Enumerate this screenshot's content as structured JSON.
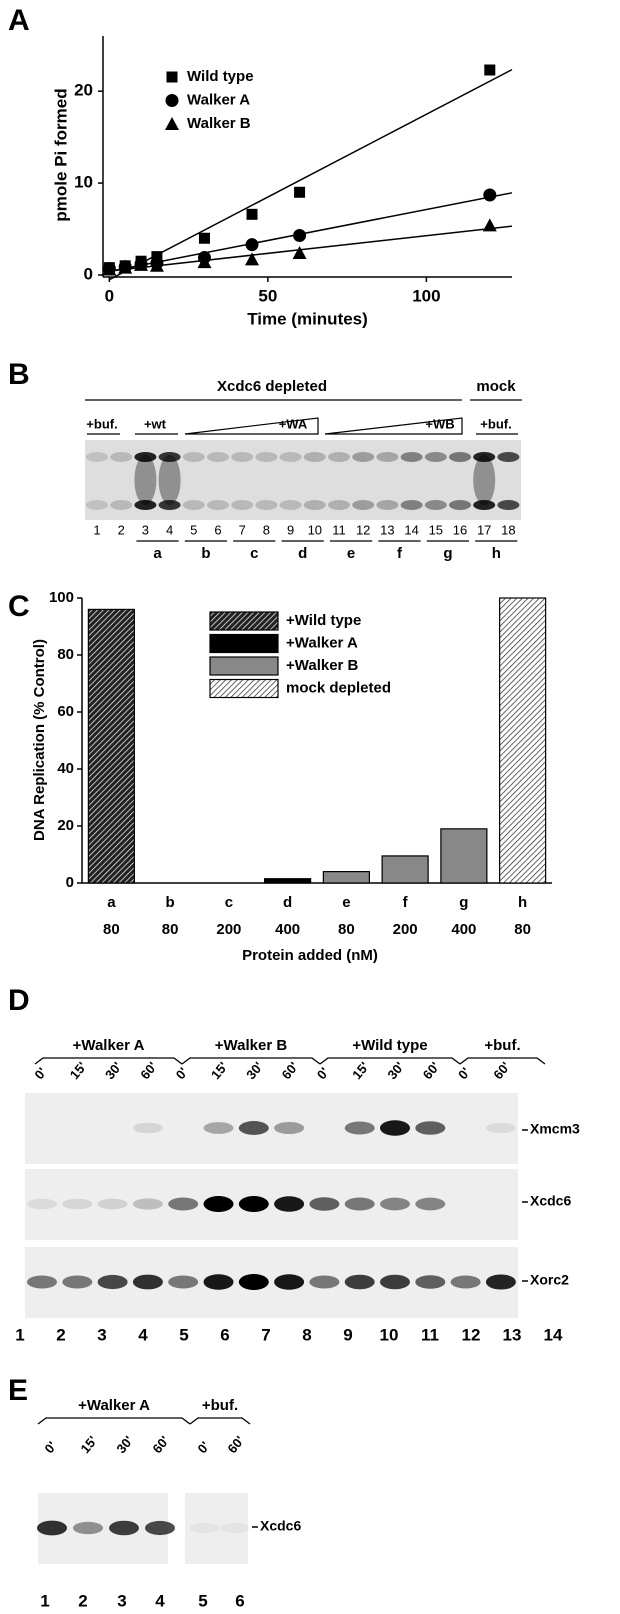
{
  "figure": {
    "letters": [
      "A",
      "B",
      "C",
      "D",
      "E"
    ]
  },
  "chart_data": [
    {
      "type": "scatter",
      "x_label": "Time (minutes)",
      "y_label": "pmole Pi formed",
      "x": [
        0,
        5,
        10,
        15,
        30,
        45,
        60,
        120
      ],
      "series": [
        {
          "name": "Wild type",
          "marker": "square",
          "color": "#000000",
          "values": [
            0.8,
            1.0,
            1.5,
            2.0,
            4.0,
            6.6,
            9.0,
            22.3
          ]
        },
        {
          "name": "Walker A",
          "marker": "circle",
          "color": "#000000",
          "values": [
            0.7,
            0.9,
            1.2,
            1.3,
            1.9,
            3.3,
            4.3,
            8.7
          ]
        },
        {
          "name": "Walker B",
          "marker": "triangle",
          "color": "#000000",
          "values": [
            0.6,
            0.8,
            1.1,
            1.0,
            1.4,
            1.7,
            2.4,
            5.4
          ]
        }
      ],
      "xlim": [
        -2,
        127
      ],
      "ylim": [
        0,
        26
      ],
      "xticks": [
        0,
        50,
        100
      ],
      "yticks": [
        0,
        10,
        20
      ],
      "fit_lines": true
    },
    {
      "type": "bar",
      "y_label": "DNA Replication (% Control)",
      "x_label": "Protein added (nM)",
      "categories": [
        "a",
        "b",
        "c",
        "d",
        "e",
        "f",
        "g",
        "h"
      ],
      "protein_added": [
        80,
        80,
        200,
        400,
        80,
        200,
        400,
        80
      ],
      "series": [
        {
          "name": "+Wild type",
          "color": "#222222",
          "hatch_color": "#ffffff",
          "values": [
            96,
            null,
            null,
            null,
            null,
            null,
            null,
            null
          ]
        },
        {
          "name": "+Walker A",
          "color": "#000000",
          "values": [
            null,
            0,
            0,
            1.5,
            null,
            null,
            null,
            null
          ]
        },
        {
          "name": "+Walker B",
          "color": "#888888",
          "values": [
            null,
            null,
            null,
            null,
            4,
            9.5,
            19,
            null
          ]
        },
        {
          "name": "mock depleted",
          "color": "#ffffff",
          "hatch_color": "#222222",
          "values": [
            null,
            null,
            null,
            null,
            null,
            null,
            null,
            100
          ]
        }
      ],
      "ylim": [
        0,
        100
      ],
      "yticks": [
        0,
        20,
        40,
        60,
        80,
        100
      ]
    }
  ],
  "panel_b": {
    "group_labels": [
      "Xcdc6 depleted",
      "mock"
    ],
    "condition_labels": [
      "+buf.",
      "+wt",
      "+WA",
      "+WB",
      "+buf."
    ],
    "lanes": [
      1,
      2,
      3,
      4,
      5,
      6,
      7,
      8,
      9,
      10,
      11,
      12,
      13,
      14,
      15,
      16,
      17,
      18
    ],
    "pairs": [
      "a",
      "b",
      "c",
      "d",
      "e",
      "f",
      "g",
      "h"
    ]
  },
  "panel_d": {
    "groups": [
      "+Walker A",
      "+Walker B",
      "+Wild type",
      "+buf."
    ],
    "times": [
      "0'",
      "15'",
      "30'",
      "60'",
      "0'",
      "15'",
      "30'",
      "60'",
      "0'",
      "15'",
      "30'",
      "60'",
      "0'",
      "60'"
    ],
    "blots": [
      "Xmcm3",
      "Xcdc6",
      "Xorc2"
    ],
    "lanes": [
      1,
      2,
      3,
      4,
      5,
      6,
      7,
      8,
      9,
      10,
      11,
      12,
      13,
      14
    ]
  },
  "panel_e": {
    "groups": [
      "+Walker A",
      "+buf."
    ],
    "times": [
      "0'",
      "15'",
      "30'",
      "60'",
      "0'",
      "60'"
    ],
    "blots": [
      "Xcdc6"
    ],
    "lanes": [
      1,
      2,
      3,
      4,
      5,
      6
    ]
  }
}
